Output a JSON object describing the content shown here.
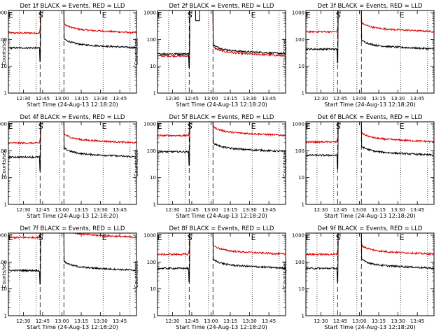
{
  "chart_data": {
    "type": "line",
    "panels": [
      {
        "title": "Det 1f BLACK = Events, RED = LLD",
        "events_level": 50,
        "lld_level": 180,
        "peak_shape": "spike"
      },
      {
        "title": "Det 2f BLACK = Events, RED = LLD",
        "events_level": 30,
        "lld_level": 25,
        "peak_shape": "twin"
      },
      {
        "title": "Det 3f BLACK = Events, RED = LLD",
        "events_level": 45,
        "lld_level": 200,
        "peak_shape": "spike"
      },
      {
        "title": "Det 4f BLACK = Events, RED = LLD",
        "events_level": 60,
        "lld_level": 200,
        "peak_shape": "spike"
      },
      {
        "title": "Det 5f BLACK = Events, RED = LLD",
        "events_level": 95,
        "lld_level": 380,
        "peak_shape": "spike"
      },
      {
        "title": "Det 6f BLACK = Events, RED = LLD",
        "events_level": 70,
        "lld_level": 220,
        "peak_shape": "spike"
      },
      {
        "title": "Det 7f BLACK = Events, RED = LLD",
        "events_level": 50,
        "lld_level": 850,
        "peak_shape": "spike"
      },
      {
        "title": "Det 8f BLACK = Events, RED = LLD",
        "events_level": 60,
        "lld_level": 200,
        "peak_shape": "spike"
      },
      {
        "title": "Det 9f BLACK = Events, RED = LLD",
        "events_level": 60,
        "lld_level": 200,
        "peak_shape": "spike"
      }
    ],
    "series": [
      {
        "name": "Events",
        "color": "#000000"
      },
      {
        "name": "LLD",
        "color": "#dd0000"
      }
    ],
    "x_tick_labels": [
      "12:30",
      "12:45",
      "13:00",
      "13:15",
      "13:30",
      "13:45"
    ],
    "x_tick_minutes": [
      30,
      45,
      60,
      75,
      90,
      105
    ],
    "xlim_minutes": [
      18.33,
      118
    ],
    "x_unit": "minutes after 12:00",
    "xlabel": "Start Time (24-Aug-13 12:18:20)",
    "ylabel": "Counts/sec",
    "y_tick_labels": [
      "1",
      "10",
      "100",
      "1000"
    ],
    "y_tick_values": [
      1,
      10,
      100,
      1000
    ],
    "ylim": [
      1,
      1200
    ],
    "y_scale": "log",
    "dotted_lines_minutes": [
      27,
      40,
      58,
      92,
      113
    ],
    "dashed_lines_minutes": [
      43,
      61.5
    ],
    "markers": [
      {
        "label": "E",
        "minute": 20
      },
      {
        "label": "S",
        "minute": 43.5
      },
      {
        "label": "E",
        "minute": 93
      }
    ]
  }
}
